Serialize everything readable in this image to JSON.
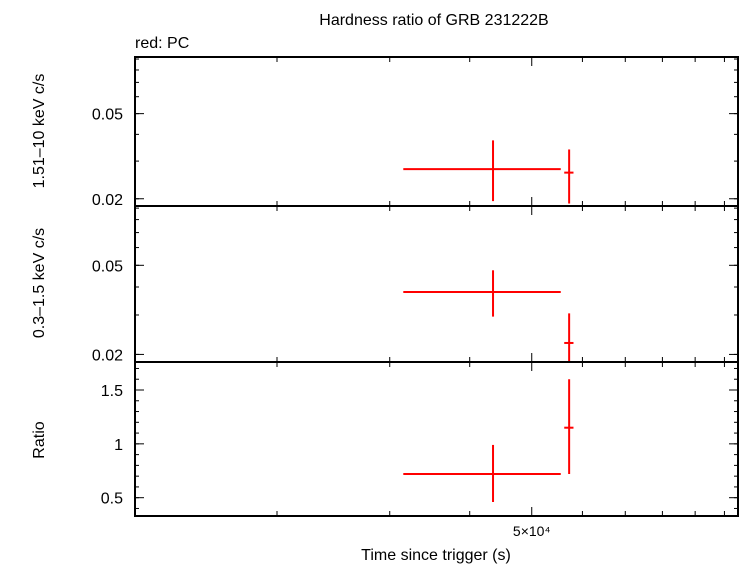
{
  "chart_data": {
    "type": "scatter",
    "title": "Hardness ratio of GRB 231222B",
    "subtitle": "red: PC",
    "xlabel": "Time since trigger (s)",
    "x_scale": "log",
    "xlim": [
      12000,
      105000
    ],
    "x_tick_label": "5×10⁴",
    "x_tick_value": 50000,
    "x_minor_ticks": [
      20000,
      30000,
      40000,
      50000,
      60000,
      70000,
      80000,
      90000,
      100000
    ],
    "series_color": "#ff0000",
    "panels": [
      {
        "ylabel": "1.51–10 keV c/s",
        "y_scale": "log",
        "ylim": [
          0.0185,
          0.092
        ],
        "yticks": [
          {
            "v": 0.02,
            "label": "0.02"
          },
          {
            "v": 0.05,
            "label": "0.05"
          }
        ],
        "y_minor_ticks": [
          0.02,
          0.03,
          0.04,
          0.05,
          0.06,
          0.07,
          0.08,
          0.09
        ],
        "points": [
          {
            "x": 43500,
            "xlo": 31500,
            "xhi": 55500,
            "y": 0.0275,
            "ylo": 0.0195,
            "yhi": 0.0375
          },
          {
            "x": 57200,
            "xlo": 56200,
            "xhi": 58100,
            "y": 0.0265,
            "ylo": 0.019,
            "yhi": 0.034
          }
        ]
      },
      {
        "ylabel": "0.3–1.5 keV c/s",
        "y_scale": "log",
        "ylim": [
          0.0185,
          0.092
        ],
        "yticks": [
          {
            "v": 0.02,
            "label": "0.02"
          },
          {
            "v": 0.05,
            "label": "0.05"
          }
        ],
        "y_minor_ticks": [
          0.02,
          0.03,
          0.04,
          0.05,
          0.06,
          0.07,
          0.08,
          0.09
        ],
        "points": [
          {
            "x": 43500,
            "xlo": 31500,
            "xhi": 55500,
            "y": 0.038,
            "ylo": 0.0295,
            "yhi": 0.0475
          },
          {
            "x": 57200,
            "xlo": 56200,
            "xhi": 58100,
            "y": 0.0225,
            "ylo": 0.0175,
            "yhi": 0.0305
          }
        ]
      },
      {
        "ylabel": "Ratio",
        "y_scale": "linear",
        "ylim": [
          0.33,
          1.76
        ],
        "yticks": [
          {
            "v": 0.5,
            "label": "0.5"
          },
          {
            "v": 1,
            "label": "1"
          },
          {
            "v": 1.5,
            "label": "1.5"
          }
        ],
        "y_minor_ticks": [
          0.4,
          0.5,
          0.6,
          0.7,
          0.8,
          0.9,
          1.0,
          1.1,
          1.2,
          1.3,
          1.4,
          1.5,
          1.6,
          1.7
        ],
        "points": [
          {
            "x": 43500,
            "xlo": 31500,
            "xhi": 55500,
            "y": 0.72,
            "ylo": 0.46,
            "yhi": 0.99
          },
          {
            "x": 57200,
            "xlo": 56200,
            "xhi": 58100,
            "y": 1.15,
            "ylo": 0.72,
            "yhi": 1.6
          }
        ]
      }
    ]
  }
}
